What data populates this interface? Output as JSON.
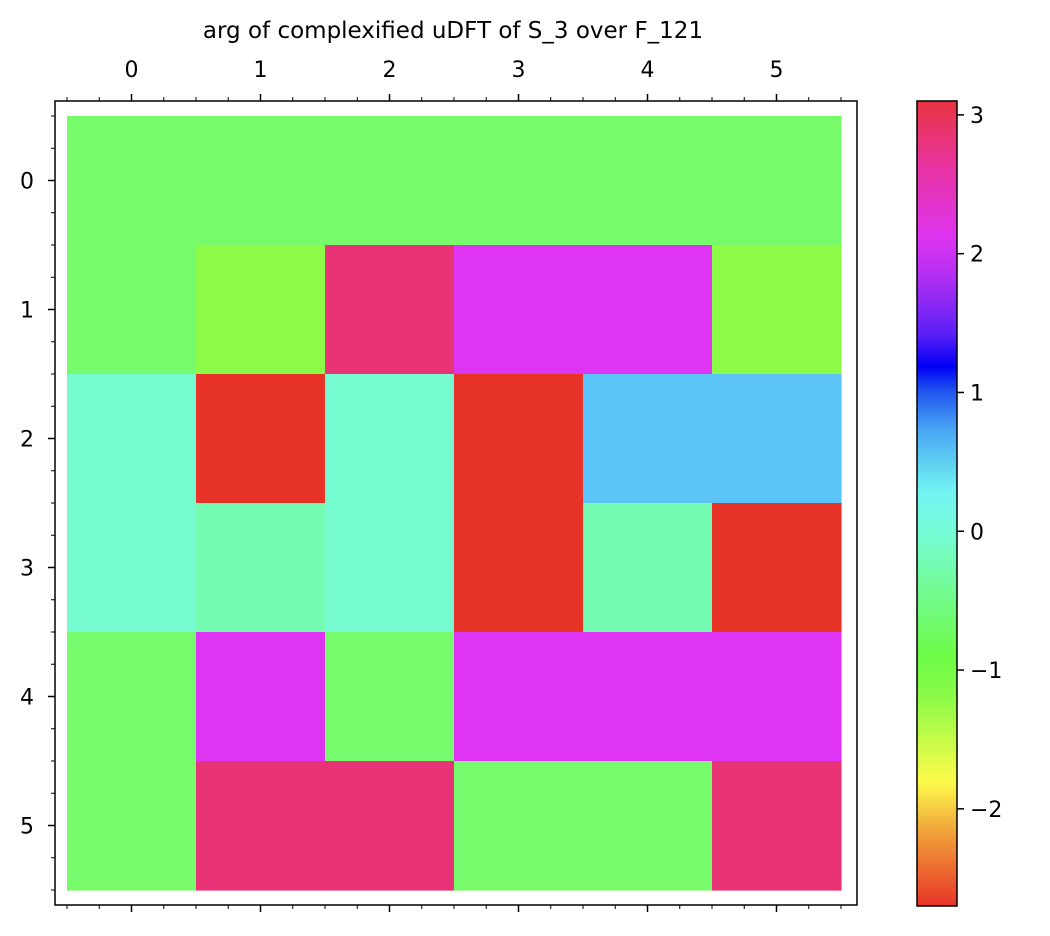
{
  "chart_data": {
    "type": "heatmap",
    "title": "arg of complexified uDFT of S_3 over F_121",
    "x_ticks": [
      "0",
      "1",
      "2",
      "3",
      "4",
      "5"
    ],
    "y_ticks": [
      "0",
      "1",
      "2",
      "3",
      "4",
      "5"
    ],
    "x_axis_position": "top",
    "colormap": "hsv",
    "colorbar": {
      "placement": "right",
      "range": [
        -2.7,
        3.1
      ],
      "ticks": [
        3,
        2,
        1,
        0,
        -1,
        -2
      ],
      "tick_labels": [
        "3",
        "2",
        "1",
        "0",
        "−1",
        "−2"
      ]
    },
    "grid": false,
    "matrix": [
      [
        -0.8,
        -0.8,
        -0.8,
        -0.8,
        -0.8,
        -0.8
      ],
      [
        -0.8,
        -1.1,
        2.8,
        2.2,
        2.2,
        -1.1
      ],
      [
        0.05,
        -2.7,
        0.05,
        -2.7,
        0.6,
        0.6
      ],
      [
        0.05,
        -0.25,
        0.05,
        -2.7,
        -0.25,
        -2.7
      ],
      [
        -0.8,
        2.2,
        -0.8,
        2.2,
        2.2,
        2.2
      ],
      [
        -0.8,
        2.8,
        2.8,
        -0.8,
        -0.8,
        2.8
      ]
    ],
    "cell_colors": [
      [
        "#77fb6d",
        "#77fb6d",
        "#77fb6d",
        "#77fb6d",
        "#77fb6d",
        "#77fb6d"
      ],
      [
        "#77fb6d",
        "#8bfb48",
        "#e83376",
        "#dd35f2",
        "#dd35f2",
        "#8bfb48"
      ],
      [
        "#76fbd0",
        "#e83428",
        "#76fbd0",
        "#e83428",
        "#5bc3f6",
        "#5bc3f6"
      ],
      [
        "#76fbd0",
        "#76fbb2",
        "#76fbd0",
        "#e83428",
        "#76fbb2",
        "#e83428"
      ],
      [
        "#77fb6d",
        "#dd35f2",
        "#77fb6d",
        "#dd35f2",
        "#dd35f2",
        "#dd35f2"
      ],
      [
        "#77fb6d",
        "#e83376",
        "#e83376",
        "#77fb6d",
        "#77fb6d",
        "#e83376"
      ]
    ]
  }
}
